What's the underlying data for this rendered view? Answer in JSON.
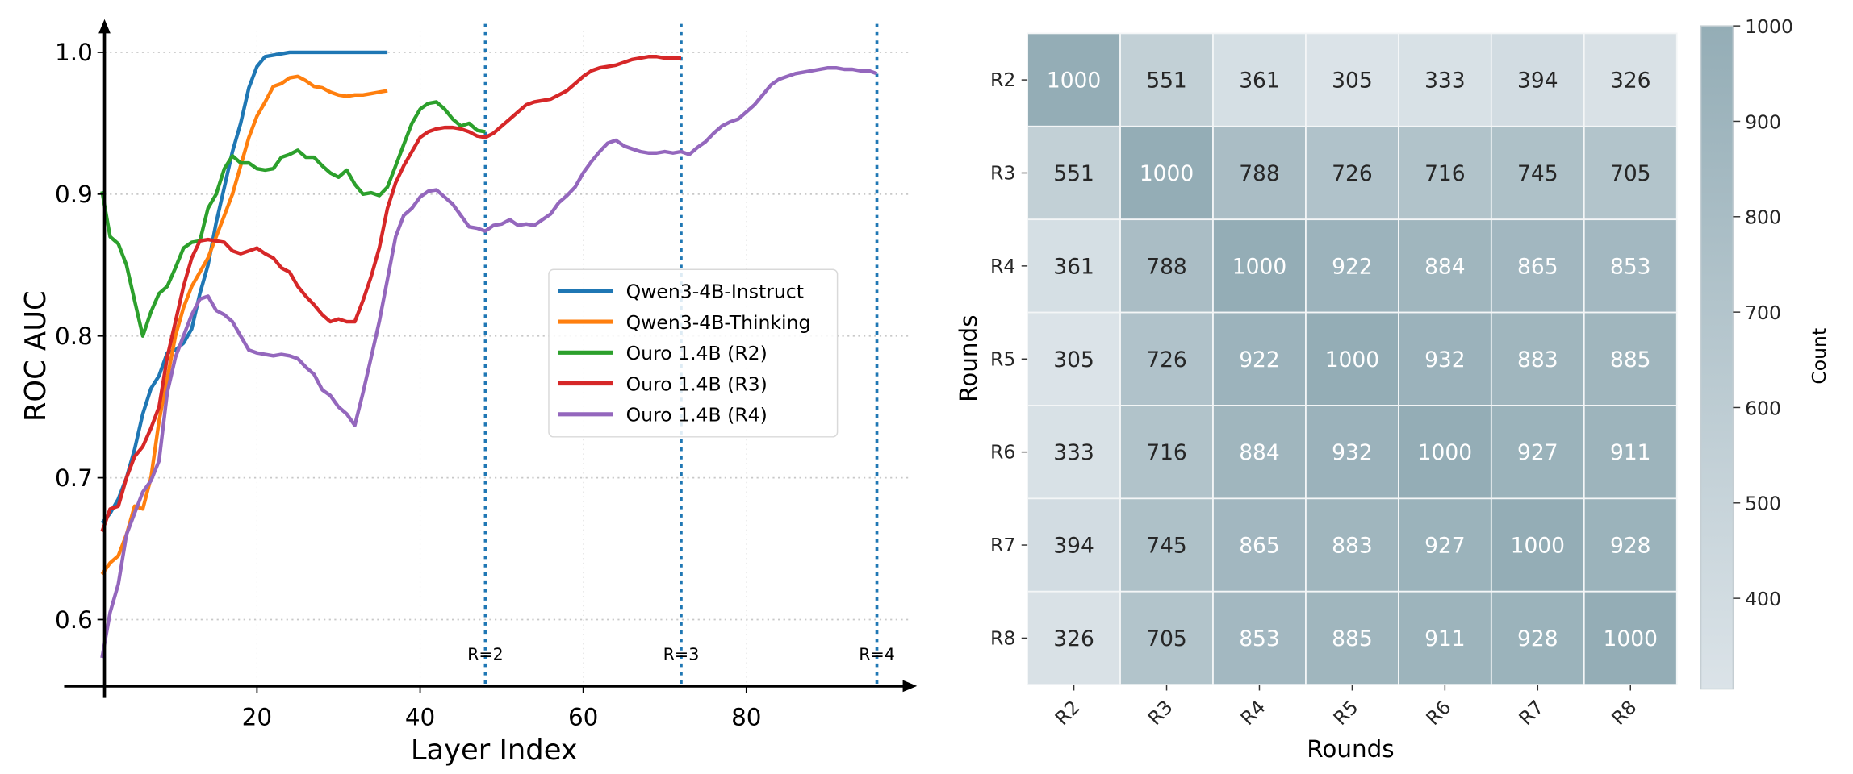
{
  "chart_data": [
    {
      "type": "line",
      "title": "",
      "xlabel": "Layer Index",
      "ylabel": "ROC AUC",
      "xticks": [
        20,
        40,
        60,
        80
      ],
      "yticks": [
        0.6,
        0.7,
        0.8,
        0.9,
        1.0
      ],
      "ytick_labels": [
        "0.6",
        "0.7",
        "0.8",
        "0.9",
        "1.0"
      ],
      "xlim": [
        0,
        100
      ],
      "ylim": [
        0.553,
        1.024
      ],
      "grid": "horizontal dotted",
      "legend_placement": "center-right",
      "vlines": [
        {
          "x": 48,
          "label": "R=2"
        },
        {
          "x": 72,
          "label": "R=3"
        },
        {
          "x": 96,
          "label": "R=4"
        }
      ],
      "vline_color": "#1f77b4",
      "series": [
        {
          "name": "Qwen3-4B-Instruct",
          "color": "#1f77b4",
          "x_start": 1,
          "values": [
            0.668,
            0.675,
            0.685,
            0.7,
            0.72,
            0.745,
            0.763,
            0.772,
            0.788,
            0.79,
            0.795,
            0.805,
            0.83,
            0.85,
            0.88,
            0.905,
            0.93,
            0.95,
            0.975,
            0.99,
            0.997,
            0.998,
            0.999,
            1.0,
            1.0,
            1.0,
            1.0,
            1.0,
            1.0,
            1.0,
            1.0,
            1.0,
            1.0,
            1.0,
            1.0,
            1.0
          ]
        },
        {
          "name": "Qwen3-4B-Thinking",
          "color": "#ff7f0e",
          "x_start": 1,
          "values": [
            0.632,
            0.64,
            0.645,
            0.66,
            0.68,
            0.678,
            0.7,
            0.74,
            0.77,
            0.8,
            0.82,
            0.835,
            0.845,
            0.855,
            0.87,
            0.885,
            0.9,
            0.92,
            0.94,
            0.955,
            0.965,
            0.976,
            0.978,
            0.982,
            0.983,
            0.98,
            0.976,
            0.975,
            0.972,
            0.97,
            0.969,
            0.97,
            0.97,
            0.971,
            0.972,
            0.973
          ]
        },
        {
          "name": "Ouro 1.4B (R2)",
          "color": "#2ca02c",
          "x_start": 1,
          "values": [
            0.902,
            0.87,
            0.865,
            0.85,
            0.825,
            0.8,
            0.817,
            0.83,
            0.835,
            0.848,
            0.862,
            0.866,
            0.867,
            0.89,
            0.9,
            0.918,
            0.927,
            0.922,
            0.922,
            0.918,
            0.917,
            0.918,
            0.926,
            0.928,
            0.931,
            0.926,
            0.926,
            0.92,
            0.915,
            0.912,
            0.917,
            0.907,
            0.9,
            0.901,
            0.899,
            0.905,
            0.92,
            0.935,
            0.95,
            0.96,
            0.964,
            0.965,
            0.96,
            0.953,
            0.948,
            0.95,
            0.945,
            0.944
          ]
        },
        {
          "name": "Ouro 1.4B (R3)",
          "color": "#d62728",
          "x_start": 1,
          "values": [
            0.662,
            0.678,
            0.68,
            0.7,
            0.715,
            0.722,
            0.735,
            0.75,
            0.785,
            0.81,
            0.835,
            0.855,
            0.867,
            0.868,
            0.867,
            0.866,
            0.86,
            0.858,
            0.86,
            0.862,
            0.858,
            0.855,
            0.848,
            0.845,
            0.835,
            0.828,
            0.822,
            0.815,
            0.81,
            0.812,
            0.81,
            0.81,
            0.825,
            0.842,
            0.862,
            0.89,
            0.908,
            0.92,
            0.93,
            0.94,
            0.944,
            0.946,
            0.947,
            0.947,
            0.946,
            0.944,
            0.941,
            0.94,
            0.943,
            0.948,
            0.953,
            0.958,
            0.963,
            0.965,
            0.966,
            0.967,
            0.97,
            0.973,
            0.978,
            0.983,
            0.987,
            0.989,
            0.99,
            0.991,
            0.993,
            0.995,
            0.996,
            0.997,
            0.997,
            0.996,
            0.996,
            0.996
          ]
        },
        {
          "name": "Ouro 1.4B (R4)",
          "color": "#9467bd",
          "x_start": 1,
          "values": [
            0.573,
            0.605,
            0.625,
            0.66,
            0.675,
            0.69,
            0.698,
            0.712,
            0.76,
            0.785,
            0.8,
            0.815,
            0.826,
            0.828,
            0.818,
            0.815,
            0.81,
            0.8,
            0.79,
            0.788,
            0.787,
            0.786,
            0.787,
            0.786,
            0.784,
            0.778,
            0.773,
            0.762,
            0.758,
            0.75,
            0.745,
            0.737,
            0.76,
            0.785,
            0.81,
            0.84,
            0.87,
            0.885,
            0.89,
            0.898,
            0.902,
            0.903,
            0.898,
            0.893,
            0.885,
            0.877,
            0.876,
            0.874,
            0.878,
            0.879,
            0.882,
            0.878,
            0.879,
            0.878,
            0.882,
            0.886,
            0.894,
            0.899,
            0.905,
            0.915,
            0.923,
            0.93,
            0.936,
            0.938,
            0.934,
            0.932,
            0.93,
            0.929,
            0.929,
            0.93,
            0.929,
            0.93,
            0.928,
            0.933,
            0.937,
            0.943,
            0.948,
            0.951,
            0.953,
            0.958,
            0.963,
            0.97,
            0.977,
            0.981,
            0.983,
            0.985,
            0.986,
            0.987,
            0.988,
            0.989,
            0.989,
            0.988,
            0.988,
            0.987,
            0.987,
            0.985
          ]
        }
      ]
    },
    {
      "type": "heatmap",
      "title": "",
      "xlabel": "Rounds",
      "ylabel": "Rounds",
      "x_categories": [
        "R2",
        "R3",
        "R4",
        "R5",
        "R6",
        "R7",
        "R8"
      ],
      "y_categories": [
        "R2",
        "R3",
        "R4",
        "R5",
        "R6",
        "R7",
        "R8"
      ],
      "values": [
        [
          1000,
          551,
          361,
          305,
          333,
          394,
          326
        ],
        [
          551,
          1000,
          788,
          726,
          716,
          745,
          705
        ],
        [
          361,
          788,
          1000,
          922,
          884,
          865,
          853
        ],
        [
          305,
          726,
          922,
          1000,
          932,
          883,
          885
        ],
        [
          333,
          716,
          884,
          932,
          1000,
          927,
          911
        ],
        [
          394,
          745,
          865,
          883,
          927,
          1000,
          928
        ],
        [
          326,
          705,
          853,
          885,
          911,
          928,
          1000
        ]
      ],
      "colorbar": {
        "label": "Count",
        "range": [
          305,
          1000
        ],
        "ticks": [
          400,
          500,
          600,
          700,
          800,
          900,
          1000
        ],
        "low_color": "#dbe3e8",
        "high_color": "#94adb6"
      }
    }
  ]
}
